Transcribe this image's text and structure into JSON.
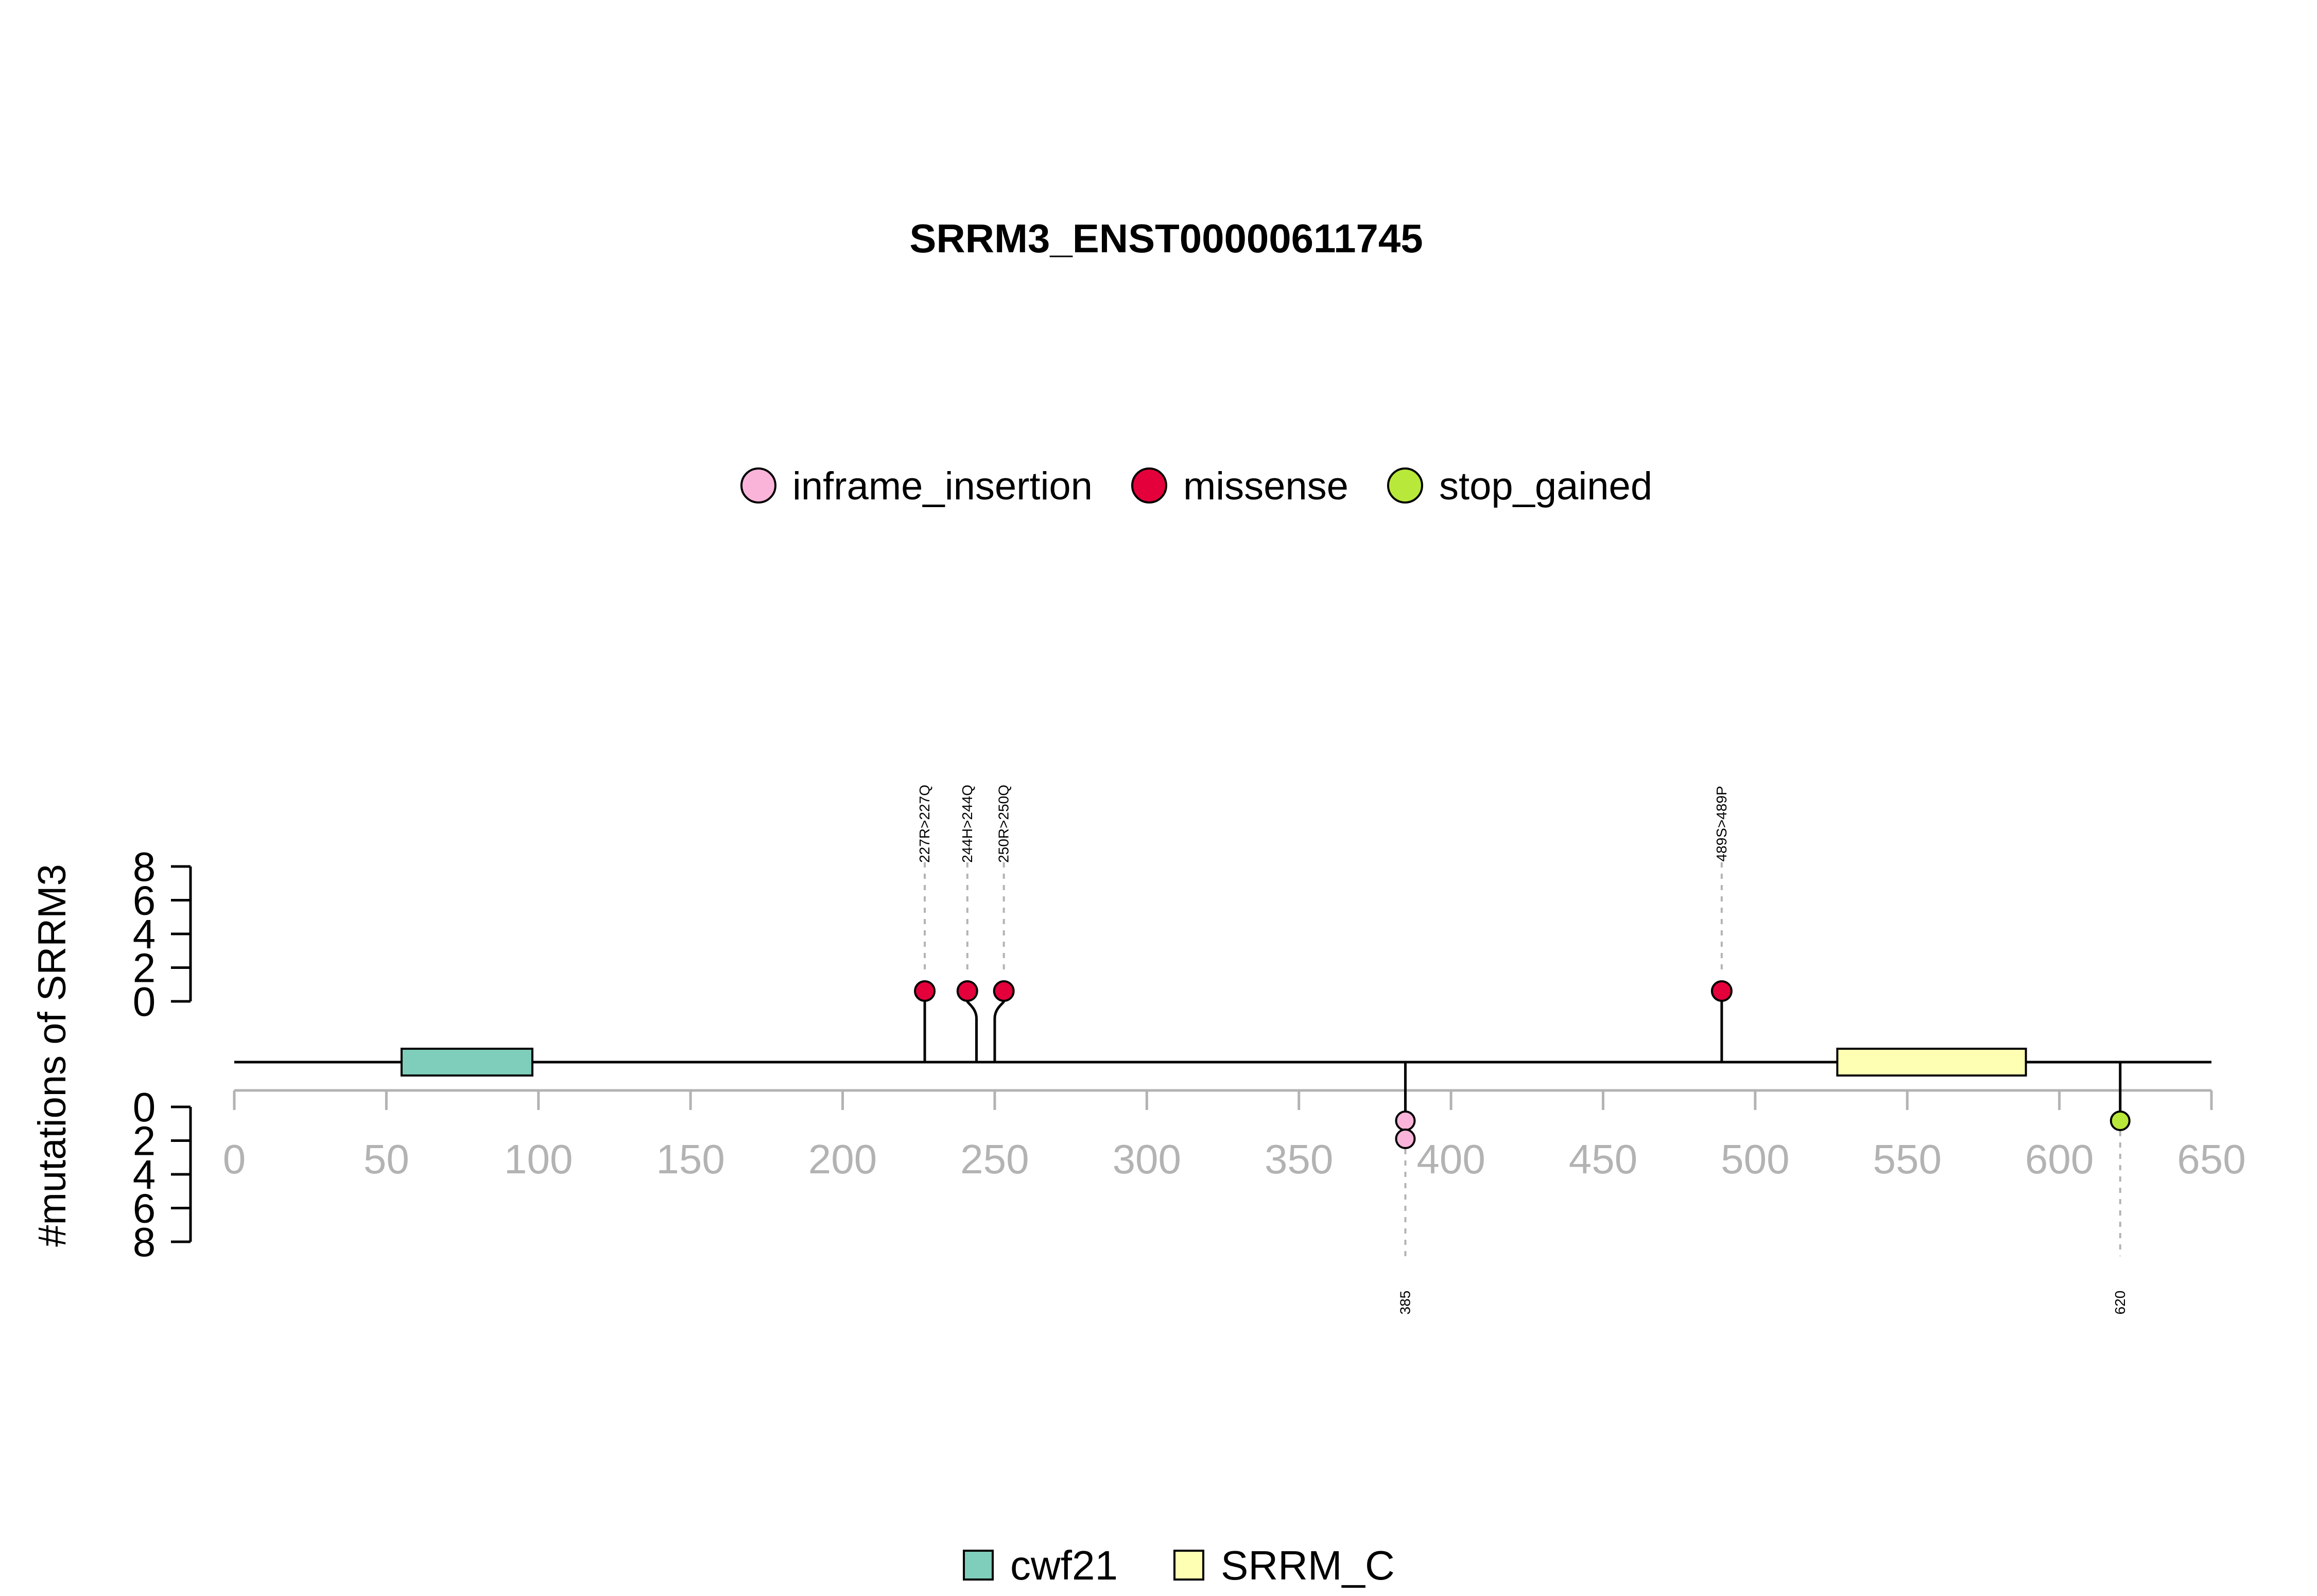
{
  "chart_data": {
    "type": "lollipop",
    "title": "SRRM3_ENST00000611745",
    "ylabel": "#mutations of SRRM3",
    "xlim": [
      0,
      650
    ],
    "x_ticks": [
      "0",
      "50",
      "100",
      "150",
      "200",
      "250",
      "300",
      "350",
      "400",
      "450",
      "500",
      "550",
      "600",
      "650"
    ],
    "upper_y_ticks": [
      "0",
      "2",
      "4",
      "6",
      "8"
    ],
    "lower_y_ticks": [
      "0",
      "2",
      "4",
      "6",
      "8"
    ],
    "legend_mutations": [
      {
        "name": "inframe_insertion",
        "color": "#FBB4D9"
      },
      {
        "name": "missense",
        "color": "#E4003B"
      },
      {
        "name": "stop_gained",
        "color": "#B8E83A"
      }
    ],
    "legend_domains": [
      {
        "name": "cwf21",
        "color": "#7FCDBB"
      },
      {
        "name": "SRRM_C",
        "color": "#FFFFB3"
      }
    ],
    "domains": [
      {
        "name": "cwf21",
        "start": 55,
        "end": 98,
        "color": "#7FCDBB"
      },
      {
        "name": "SRRM_C",
        "start": 527,
        "end": 589,
        "color": "#FFFFB3"
      }
    ],
    "upper_mutations": [
      {
        "pos": 227,
        "label": "227R>227Q",
        "type": "missense",
        "count": 1
      },
      {
        "pos": 244,
        "label": "244H>244Q",
        "type": "missense",
        "count": 1
      },
      {
        "pos": 250,
        "label": "250R>250Q",
        "type": "missense",
        "count": 1
      },
      {
        "pos": 489,
        "label": "489S>489P",
        "type": "missense",
        "count": 1
      }
    ],
    "lower_mutations": [
      {
        "pos": 385,
        "label": "385",
        "type": "inframe_insertion",
        "count": 2
      },
      {
        "pos": 620,
        "label": "620",
        "type": "stop_gained",
        "count": 1
      }
    ]
  }
}
